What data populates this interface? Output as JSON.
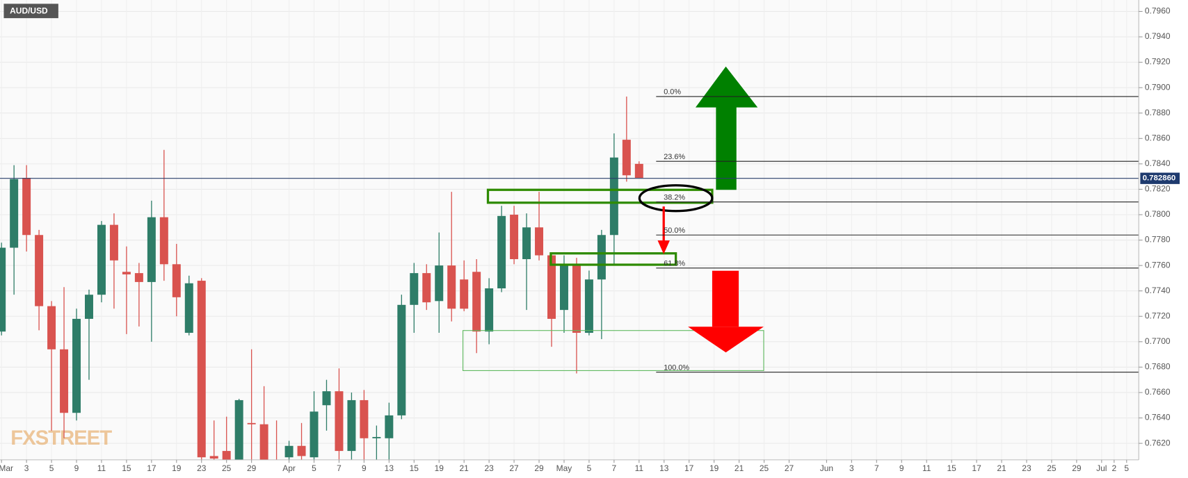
{
  "chart_data": {
    "type": "candlestick",
    "title": "AUD/USD",
    "watermark": "FXSTREET",
    "categories": [
      "Mar",
      null,
      "3",
      null,
      "5",
      null,
      "9",
      null,
      "11",
      null,
      "15",
      null,
      "17",
      null,
      "19",
      null,
      "23",
      null,
      "25",
      null,
      "29",
      null,
      null,
      "Apr",
      null,
      "5",
      null,
      "7",
      null,
      "9",
      null,
      "13",
      null,
      "15",
      null,
      "19",
      null,
      "21",
      null,
      "23",
      null,
      "27",
      null,
      "29",
      null,
      "May",
      null,
      "5",
      null,
      "7",
      null,
      "11",
      null,
      "13",
      null,
      "17",
      null,
      "19",
      null,
      "21",
      null,
      "25",
      null,
      "27",
      null,
      null,
      "Jun",
      null,
      "3",
      null,
      "7",
      null,
      "9",
      null,
      "11",
      null,
      "15",
      null,
      "17",
      null,
      "21",
      null,
      "23",
      null,
      "25",
      null,
      "29",
      null,
      "Jul",
      "2",
      "5"
    ],
    "open": [
      0.7708,
      0.7774,
      0.7829,
      0.7784,
      0.7728,
      0.7694,
      0.7644,
      0.7718,
      0.7737,
      0.7792,
      0.7755,
      0.7754,
      0.7747,
      0.7798,
      0.7761,
      0.7707,
      0.7748,
      0.761,
      0.7614,
      0.7606,
      0.7636,
      0.7635,
      0.7605,
      0.7609,
      0.7618,
      0.7609,
      0.765,
      0.7661,
      0.7614,
      0.7654,
      0.7624,
      0.7624,
      0.7642,
      0.7729,
      0.7754,
      0.7732,
      0.776,
      0.7749,
      0.7755,
      0.7708,
      0.7742,
      0.78,
      0.7765,
      0.779,
      0.7768,
      0.7725,
      0.7761,
      0.7707,
      0.7749,
      0.7784,
      0.7859,
      0.784,
      null,
      null,
      null,
      null,
      null,
      null,
      null,
      null,
      null,
      null,
      null,
      null,
      null,
      null,
      null,
      null,
      null,
      null,
      null,
      null,
      null,
      null,
      null,
      null,
      null,
      null,
      null,
      null,
      null,
      null,
      null,
      null,
      null,
      null,
      null,
      null,
      null,
      null,
      null
    ],
    "high": [
      0.7778,
      0.7839,
      0.7839,
      0.7788,
      0.7732,
      0.7743,
      0.7726,
      0.7741,
      0.7795,
      0.7801,
      0.7775,
      0.7762,
      0.7811,
      0.7851,
      0.7777,
      0.7752,
      0.775,
      0.7638,
      0.7641,
      0.7655,
      0.7694,
      0.7665,
      0.7638,
      0.7622,
      0.7636,
      0.7661,
      0.767,
      0.7679,
      0.766,
      0.7662,
      0.7634,
      0.7652,
      0.7737,
      0.7762,
      0.7761,
      0.7786,
      0.7818,
      0.7764,
      0.7765,
      0.775,
      0.7807,
      0.7807,
      0.7801,
      0.7818,
      0.7769,
      0.7768,
      0.7766,
      0.7756,
      0.7788,
      0.7864,
      0.7893,
      0.7842,
      null,
      null,
      null,
      null,
      null,
      null,
      null,
      null,
      null,
      null,
      null,
      null,
      null,
      null,
      null,
      null,
      null,
      null,
      null,
      null,
      null,
      null,
      null,
      null,
      null,
      null,
      null,
      null,
      null,
      null,
      null,
      null,
      null,
      null,
      null,
      null,
      null,
      null,
      null
    ],
    "low": [
      0.7705,
      0.7737,
      0.7771,
      0.7709,
      0.763,
      0.7624,
      0.7638,
      0.767,
      0.7731,
      0.7726,
      0.7706,
      0.7712,
      0.77,
      0.7748,
      0.772,
      0.7705,
      0.76,
      0.76,
      0.76,
      0.76,
      0.7605,
      0.7598,
      0.759,
      0.76,
      0.7604,
      0.76,
      0.763,
      0.76,
      0.7606,
      0.7603,
      0.7606,
      0.7607,
      0.7639,
      0.7707,
      0.7725,
      0.7707,
      0.7716,
      0.7724,
      0.7691,
      0.7698,
      0.7739,
      0.7761,
      0.7725,
      0.7764,
      0.7696,
      0.7707,
      0.7675,
      0.7705,
      0.7702,
      0.7761,
      0.7826,
      0.7829,
      null,
      null,
      null,
      null,
      null,
      null,
      null,
      null,
      null,
      null,
      null,
      null,
      null,
      null,
      null,
      null,
      null,
      null,
      null,
      null,
      null,
      null,
      null,
      null,
      null,
      null,
      null,
      null,
      null,
      null,
      null,
      null,
      null,
      null,
      null,
      null,
      null,
      null,
      null
    ],
    "close": [
      0.7774,
      0.7828,
      0.7784,
      0.7728,
      0.7694,
      0.7644,
      0.7718,
      0.7737,
      0.7792,
      0.7764,
      0.7753,
      0.7747,
      0.7798,
      0.7761,
      0.7735,
      0.7746,
      0.7609,
      0.7608,
      0.7605,
      0.7654,
      0.7635,
      0.7606,
      0.7598,
      0.7618,
      0.761,
      0.7645,
      0.7661,
      0.7614,
      0.7654,
      0.7624,
      0.7625,
      0.7642,
      0.7729,
      0.7754,
      0.7731,
      0.776,
      0.7726,
      0.7726,
      0.7708,
      0.7742,
      0.7799,
      0.7765,
      0.779,
      0.7768,
      0.7718,
      0.7761,
      0.7707,
      0.7749,
      0.7784,
      0.7845,
      0.7831,
      0.7829,
      null,
      null,
      null,
      null,
      null,
      null,
      null,
      null,
      null,
      null,
      null,
      null,
      null,
      null,
      null,
      null,
      null,
      null,
      null,
      null,
      null,
      null,
      null,
      null,
      null,
      null,
      null,
      null,
      null,
      null,
      null,
      null,
      null,
      null,
      null,
      null,
      null,
      null,
      null
    ],
    "up_color": "#2e7d68",
    "down_color": "#d9534f",
    "ylim": [
      0.7607,
      0.7969
    ],
    "yticks": [
      {
        "value": 0.762,
        "label": "0.7620"
      },
      {
        "value": 0.764,
        "label": "0.7640"
      },
      {
        "value": 0.766,
        "label": "0.7660"
      },
      {
        "value": 0.768,
        "label": "0.7680"
      },
      {
        "value": 0.77,
        "label": "0.7700"
      },
      {
        "value": 0.772,
        "label": "0.7720"
      },
      {
        "value": 0.774,
        "label": "0.7740"
      },
      {
        "value": 0.776,
        "label": "0.7760"
      },
      {
        "value": 0.778,
        "label": "0.7780"
      },
      {
        "value": 0.78,
        "label": "0.7800"
      },
      {
        "value": 0.782,
        "label": "0.7820"
      },
      {
        "value": 0.784,
        "label": "0.7840"
      },
      {
        "value": 0.786,
        "label": "0.7860"
      },
      {
        "value": 0.788,
        "label": "0.7880"
      },
      {
        "value": 0.79,
        "label": "0.7900"
      },
      {
        "value": 0.792,
        "label": "0.7920"
      },
      {
        "value": 0.794,
        "label": "0.7940"
      },
      {
        "value": 0.796,
        "label": "0.7960"
      }
    ],
    "grid": true,
    "last_price": {
      "value": 0.78286,
      "label": "0.782860"
    },
    "fibonacci": [
      {
        "label": "0.0%",
        "value": 0.7893
      },
      {
        "label": "23.6%",
        "value": 0.7842
      },
      {
        "label": "38.2%",
        "value": 0.781
      },
      {
        "label": "50.0%",
        "value": 0.7784
      },
      {
        "label": "61.8%",
        "value": 0.7758
      },
      {
        "label": "100.0%",
        "value": 0.7676
      }
    ]
  }
}
